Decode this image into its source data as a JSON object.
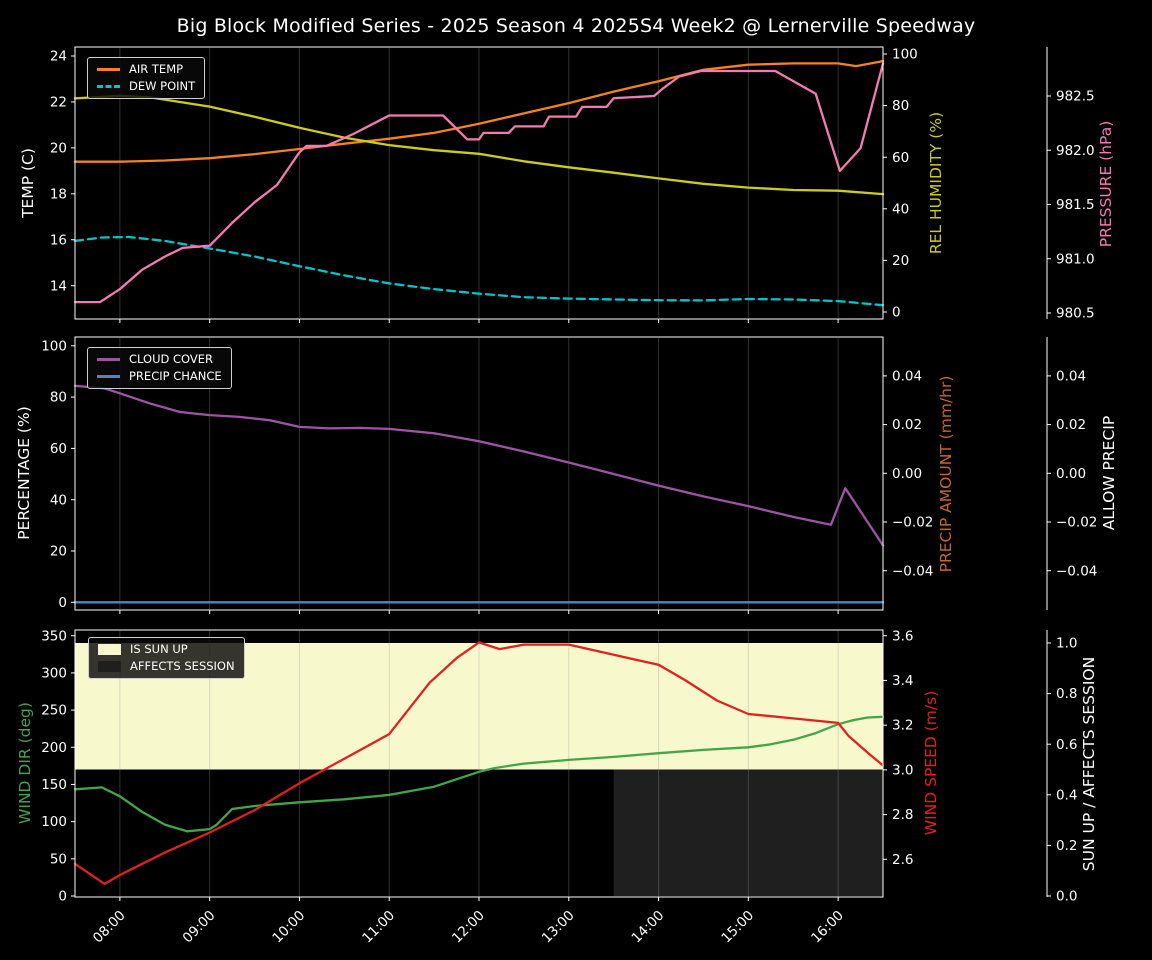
{
  "title": "Big Block Modified Series - 2025 Season 4 2025S4 Week2 @ Lernerville Speedway",
  "colors": {
    "air_temp": "#f5821f",
    "dew_point": "#00c6cb",
    "humidity": "#cccc1a",
    "pressure": "#f27bb2",
    "cloud_cover": "#9e54a5",
    "precip_chance": "#4c87c0",
    "precip_amount_label": "#c5672f",
    "allow_precip_label": "#ffffff",
    "wind_dir": "#42a649",
    "wind_speed": "#e12120",
    "sun_up_fill": "#f8f8cd",
    "affects_fill": "#1f1f1f",
    "text": "#ffffff",
    "grid": "rgba(150,150,150,0.32)"
  },
  "x_axis": {
    "tick_labels": [
      "08:00",
      "09:00",
      "10:00",
      "11:00",
      "12:00",
      "13:00",
      "14:00",
      "15:00",
      "16:00"
    ],
    "tick_hours": [
      8,
      9,
      10,
      11,
      12,
      13,
      14,
      15,
      16
    ],
    "range_hours": [
      7.5,
      16.5
    ]
  },
  "panels": [
    {
      "left_axis": {
        "label": "TEMP (C)",
        "ticks": [
          "24",
          "22",
          "20",
          "18",
          "16",
          "14"
        ],
        "color_key": "text"
      },
      "right_axis_1": {
        "label": "REL HUMIDITY (%)",
        "ticks": [
          "100",
          "80",
          "60",
          "40",
          "20",
          "0"
        ],
        "color_key": "humidity"
      },
      "right_axis_2": {
        "label": "PRESSURE (hPa)",
        "ticks": [
          "982.5",
          "982.0",
          "981.5",
          "981.0",
          "980.5"
        ],
        "color_key": "pressure"
      },
      "legend": [
        {
          "label": "AIR TEMP",
          "swatch": "line",
          "color_key": "air_temp"
        },
        {
          "label": "DEW POINT",
          "swatch": "dashed-line",
          "color_key": "dew_point"
        }
      ]
    },
    {
      "left_axis": {
        "label": "PERCENTAGE (%)",
        "ticks": [
          "100",
          "80",
          "60",
          "40",
          "20",
          "0"
        ],
        "color_key": "text"
      },
      "right_axis_1": {
        "label": "PRECIP AMOUNT (mm/hr)",
        "ticks": [
          "0.04",
          "0.02",
          "0.00",
          "−0.02",
          "−0.04"
        ],
        "color_key": "precip_amount_label"
      },
      "right_axis_2": {
        "label": "ALLOW PRECIP",
        "ticks": [
          "0.04",
          "0.02",
          "0.00",
          "−0.02",
          "−0.04"
        ],
        "color_key": "allow_precip_label"
      },
      "legend": [
        {
          "label": "CLOUD COVER",
          "swatch": "line",
          "color_key": "cloud_cover"
        },
        {
          "label": "PRECIP CHANCE",
          "swatch": "line",
          "color_key": "precip_chance"
        }
      ]
    },
    {
      "left_axis": {
        "label": "WIND DIR (deg)",
        "ticks": [
          "350",
          "300",
          "250",
          "200",
          "150",
          "100",
          "50",
          "0"
        ],
        "color_key": "wind_dir"
      },
      "right_axis_1": {
        "label": "WIND SPEED (m/s)",
        "ticks": [
          "3.6",
          "3.4",
          "3.2",
          "3.0",
          "2.8",
          "2.6"
        ],
        "color_key": "wind_speed"
      },
      "right_axis_2": {
        "label": "SUN UP / AFFECTS SESSION",
        "ticks": [
          "1.0",
          "0.8",
          "0.6",
          "0.4",
          "0.2",
          "0.0"
        ],
        "color_key": "allow_precip_label"
      },
      "legend": [
        {
          "label": "IS SUN UP",
          "swatch": "patch",
          "color_key": "sun_up_fill"
        },
        {
          "label": "AFFECTS SESSION",
          "swatch": "patch",
          "color_key": "affects_fill"
        }
      ]
    }
  ],
  "chart_data": [
    {
      "type": "line",
      "panel": "temperature-humidity-pressure",
      "x_range_hours": [
        7.5,
        16.5
      ],
      "series": [
        {
          "name": "AIR TEMP",
          "axis": "temp",
          "unit": "C",
          "color_key": "air_temp",
          "dash": false,
          "points": [
            [
              7.5,
              19.4
            ],
            [
              8.0,
              19.4
            ],
            [
              8.5,
              19.45
            ],
            [
              9.0,
              19.55
            ],
            [
              9.5,
              19.73
            ],
            [
              10.0,
              19.95
            ],
            [
              10.5,
              20.18
            ],
            [
              11.0,
              20.4
            ],
            [
              11.5,
              20.65
            ],
            [
              12.0,
              21.05
            ],
            [
              12.5,
              21.5
            ],
            [
              13.0,
              21.95
            ],
            [
              13.5,
              22.45
            ],
            [
              14.0,
              22.9
            ],
            [
              14.5,
              23.4
            ],
            [
              15.0,
              23.62
            ],
            [
              15.5,
              23.68
            ],
            [
              16.0,
              23.68
            ],
            [
              16.2,
              23.56
            ],
            [
              16.5,
              23.78
            ]
          ]
        },
        {
          "name": "DEW POINT",
          "axis": "temp",
          "unit": "C",
          "color_key": "dew_point",
          "dash": true,
          "points": [
            [
              7.5,
              15.95
            ],
            [
              7.8,
              16.1
            ],
            [
              8.1,
              16.12
            ],
            [
              8.5,
              15.95
            ],
            [
              9.0,
              15.62
            ],
            [
              9.5,
              15.27
            ],
            [
              10.0,
              14.85
            ],
            [
              10.5,
              14.45
            ],
            [
              11.0,
              14.1
            ],
            [
              11.5,
              13.85
            ],
            [
              12.0,
              13.65
            ],
            [
              12.5,
              13.5
            ],
            [
              13.0,
              13.44
            ],
            [
              13.5,
              13.4
            ],
            [
              14.0,
              13.37
            ],
            [
              14.5,
              13.36
            ],
            [
              15.0,
              13.42
            ],
            [
              15.5,
              13.4
            ],
            [
              16.0,
              13.33
            ],
            [
              16.5,
              13.15
            ]
          ]
        },
        {
          "name": "REL HUMIDITY",
          "axis": "humidity",
          "unit": "%",
          "color_key": "humidity",
          "dash": false,
          "points": [
            [
              7.5,
              82.8
            ],
            [
              8.0,
              83.8
            ],
            [
              8.33,
              83.2
            ],
            [
              9.0,
              79.6
            ],
            [
              9.5,
              75.7
            ],
            [
              10.0,
              71.4
            ],
            [
              10.5,
              67.6
            ],
            [
              11.0,
              64.7
            ],
            [
              11.5,
              62.7
            ],
            [
              12.0,
              61.3
            ],
            [
              12.5,
              58.4
            ],
            [
              13.0,
              56.1
            ],
            [
              13.5,
              54.0
            ],
            [
              14.0,
              51.8
            ],
            [
              14.5,
              49.7
            ],
            [
              15.0,
              48.2
            ],
            [
              15.5,
              47.3
            ],
            [
              16.0,
              47.0
            ],
            [
              16.5,
              45.7
            ]
          ]
        },
        {
          "name": "PRESSURE",
          "axis": "pressure",
          "unit": "hPa",
          "color_key": "pressure",
          "dash": false,
          "points": [
            [
              7.5,
              980.6
            ],
            [
              7.78,
              980.6
            ],
            [
              8.0,
              980.72
            ],
            [
              8.25,
              980.9
            ],
            [
              8.5,
              981.02
            ],
            [
              8.7,
              981.1
            ],
            [
              9.0,
              981.12
            ],
            [
              9.25,
              981.33
            ],
            [
              9.5,
              981.52
            ],
            [
              9.75,
              981.68
            ],
            [
              10.0,
              981.98
            ],
            [
              10.08,
              982.04
            ],
            [
              10.3,
              982.04
            ],
            [
              10.6,
              982.15
            ],
            [
              11.0,
              982.32
            ],
            [
              11.6,
              982.32
            ],
            [
              11.87,
              982.1
            ],
            [
              12.0,
              982.1
            ],
            [
              12.05,
              982.16
            ],
            [
              12.33,
              982.16
            ],
            [
              12.4,
              982.22
            ],
            [
              12.72,
              982.22
            ],
            [
              12.78,
              982.31
            ],
            [
              13.08,
              982.31
            ],
            [
              13.15,
              982.4
            ],
            [
              13.42,
              982.4
            ],
            [
              13.5,
              982.48
            ],
            [
              13.95,
              982.5
            ],
            [
              14.05,
              982.57
            ],
            [
              14.23,
              982.68
            ],
            [
              14.47,
              982.73
            ],
            [
              15.3,
              982.73
            ],
            [
              15.75,
              982.52
            ],
            [
              16.02,
              981.81
            ],
            [
              16.25,
              982.02
            ],
            [
              16.5,
              982.8
            ]
          ]
        }
      ],
      "axis_ticks": {
        "temp": [
          24,
          22,
          20,
          18,
          16,
          14
        ],
        "humidity": [
          100,
          80,
          60,
          40,
          20,
          0
        ],
        "pressure": [
          982.5,
          982.0,
          981.5,
          981.0,
          980.5
        ]
      }
    },
    {
      "type": "line",
      "panel": "cloud-precip",
      "x_range_hours": [
        7.5,
        16.5
      ],
      "series": [
        {
          "name": "CLOUD COVER",
          "axis": "percent",
          "unit": "%",
          "color_key": "cloud_cover",
          "dash": false,
          "points": [
            [
              7.5,
              84.4
            ],
            [
              7.83,
              83.4
            ],
            [
              8.0,
              81.5
            ],
            [
              8.33,
              77.6
            ],
            [
              8.67,
              74.2
            ],
            [
              9.0,
              73.0
            ],
            [
              9.33,
              72.3
            ],
            [
              9.67,
              71.0
            ],
            [
              10.0,
              68.4
            ],
            [
              10.33,
              67.8
            ],
            [
              10.67,
              68.0
            ],
            [
              11.0,
              67.6
            ],
            [
              11.5,
              65.9
            ],
            [
              12.0,
              62.8
            ],
            [
              12.5,
              58.8
            ],
            [
              13.0,
              54.5
            ],
            [
              13.5,
              50.0
            ],
            [
              14.0,
              45.5
            ],
            [
              14.5,
              41.3
            ],
            [
              15.0,
              37.5
            ],
            [
              15.5,
              33.3
            ],
            [
              15.92,
              30.2
            ],
            [
              16.08,
              44.5
            ],
            [
              16.5,
              22.2
            ]
          ]
        },
        {
          "name": "PRECIP CHANCE",
          "axis": "percent",
          "unit": "%",
          "color_key": "precip_chance",
          "dash": false,
          "points": [
            [
              7.5,
              0
            ],
            [
              16.5,
              0
            ]
          ]
        }
      ],
      "axis_ticks": {
        "percent": [
          100,
          80,
          60,
          40,
          20,
          0
        ],
        "precip_amount": [
          0.04,
          0.02,
          0.0,
          -0.02,
          -0.04
        ],
        "allow_precip": [
          0.04,
          0.02,
          0.0,
          -0.02,
          -0.04
        ]
      }
    },
    {
      "type": "line",
      "panel": "wind-sun",
      "x_range_hours": [
        7.5,
        16.5
      ],
      "bands": [
        {
          "name": "IS SUN UP",
          "axis": "sun",
          "x_from": 7.5,
          "x_to": 16.5,
          "y_from": 0.5,
          "y_to": 1.0,
          "color_key": "sun_up_fill"
        },
        {
          "name": "AFFECTS SESSION",
          "axis": "sun",
          "x_from": 13.5,
          "x_to": 16.5,
          "y_from": 0.0,
          "y_to": 0.5,
          "color_key": "affects_fill"
        }
      ],
      "series": [
        {
          "name": "WIND DIR",
          "axis": "deg",
          "unit": "deg",
          "color_key": "wind_dir",
          "dash": false,
          "points": [
            [
              7.5,
              143.5
            ],
            [
              7.8,
              146
            ],
            [
              8.0,
              134
            ],
            [
              8.25,
              113
            ],
            [
              8.5,
              96
            ],
            [
              8.75,
              87
            ],
            [
              9.0,
              90
            ],
            [
              9.08,
              96
            ],
            [
              9.25,
              117
            ],
            [
              9.5,
              121
            ],
            [
              10.0,
              126
            ],
            [
              10.5,
              130
            ],
            [
              11.0,
              136
            ],
            [
              11.5,
              147
            ],
            [
              12.0,
              167
            ],
            [
              12.17,
              172
            ],
            [
              12.5,
              178
            ],
            [
              13.0,
              183
            ],
            [
              13.5,
              187
            ],
            [
              14.0,
              192
            ],
            [
              14.5,
              196.5
            ],
            [
              15.0,
              200
            ],
            [
              15.25,
              204
            ],
            [
              15.5,
              210
            ],
            [
              15.75,
              219
            ],
            [
              16.0,
              231
            ],
            [
              16.17,
              236.5
            ],
            [
              16.33,
              240
            ],
            [
              16.5,
              241
            ]
          ]
        },
        {
          "name": "WIND SPEED",
          "axis": "speed",
          "unit": "m/s",
          "color_key": "wind_speed",
          "dash": false,
          "points": [
            [
              7.5,
              2.58
            ],
            [
              7.83,
              2.49
            ],
            [
              8.0,
              2.53
            ],
            [
              8.5,
              2.63
            ],
            [
              9.0,
              2.72
            ],
            [
              9.5,
              2.82
            ],
            [
              10.0,
              2.94
            ],
            [
              10.5,
              3.05
            ],
            [
              11.0,
              3.16
            ],
            [
              11.45,
              3.39
            ],
            [
              11.75,
              3.5
            ],
            [
              12.0,
              3.57
            ],
            [
              12.23,
              3.54
            ],
            [
              12.5,
              3.56
            ],
            [
              13.0,
              3.56
            ],
            [
              13.55,
              3.51
            ],
            [
              14.0,
              3.47
            ],
            [
              14.3,
              3.4
            ],
            [
              14.65,
              3.31
            ],
            [
              15.0,
              3.25
            ],
            [
              15.5,
              3.23
            ],
            [
              16.0,
              3.21
            ],
            [
              16.12,
              3.15
            ],
            [
              16.35,
              3.07
            ],
            [
              16.5,
              3.02
            ]
          ]
        }
      ],
      "axis_ticks": {
        "deg": [
          350,
          300,
          250,
          200,
          150,
          100,
          50,
          0
        ],
        "speed": [
          3.6,
          3.4,
          3.2,
          3.0,
          2.8,
          2.6
        ],
        "sun": [
          1.0,
          0.8,
          0.6,
          0.4,
          0.2,
          0.0
        ]
      }
    }
  ]
}
